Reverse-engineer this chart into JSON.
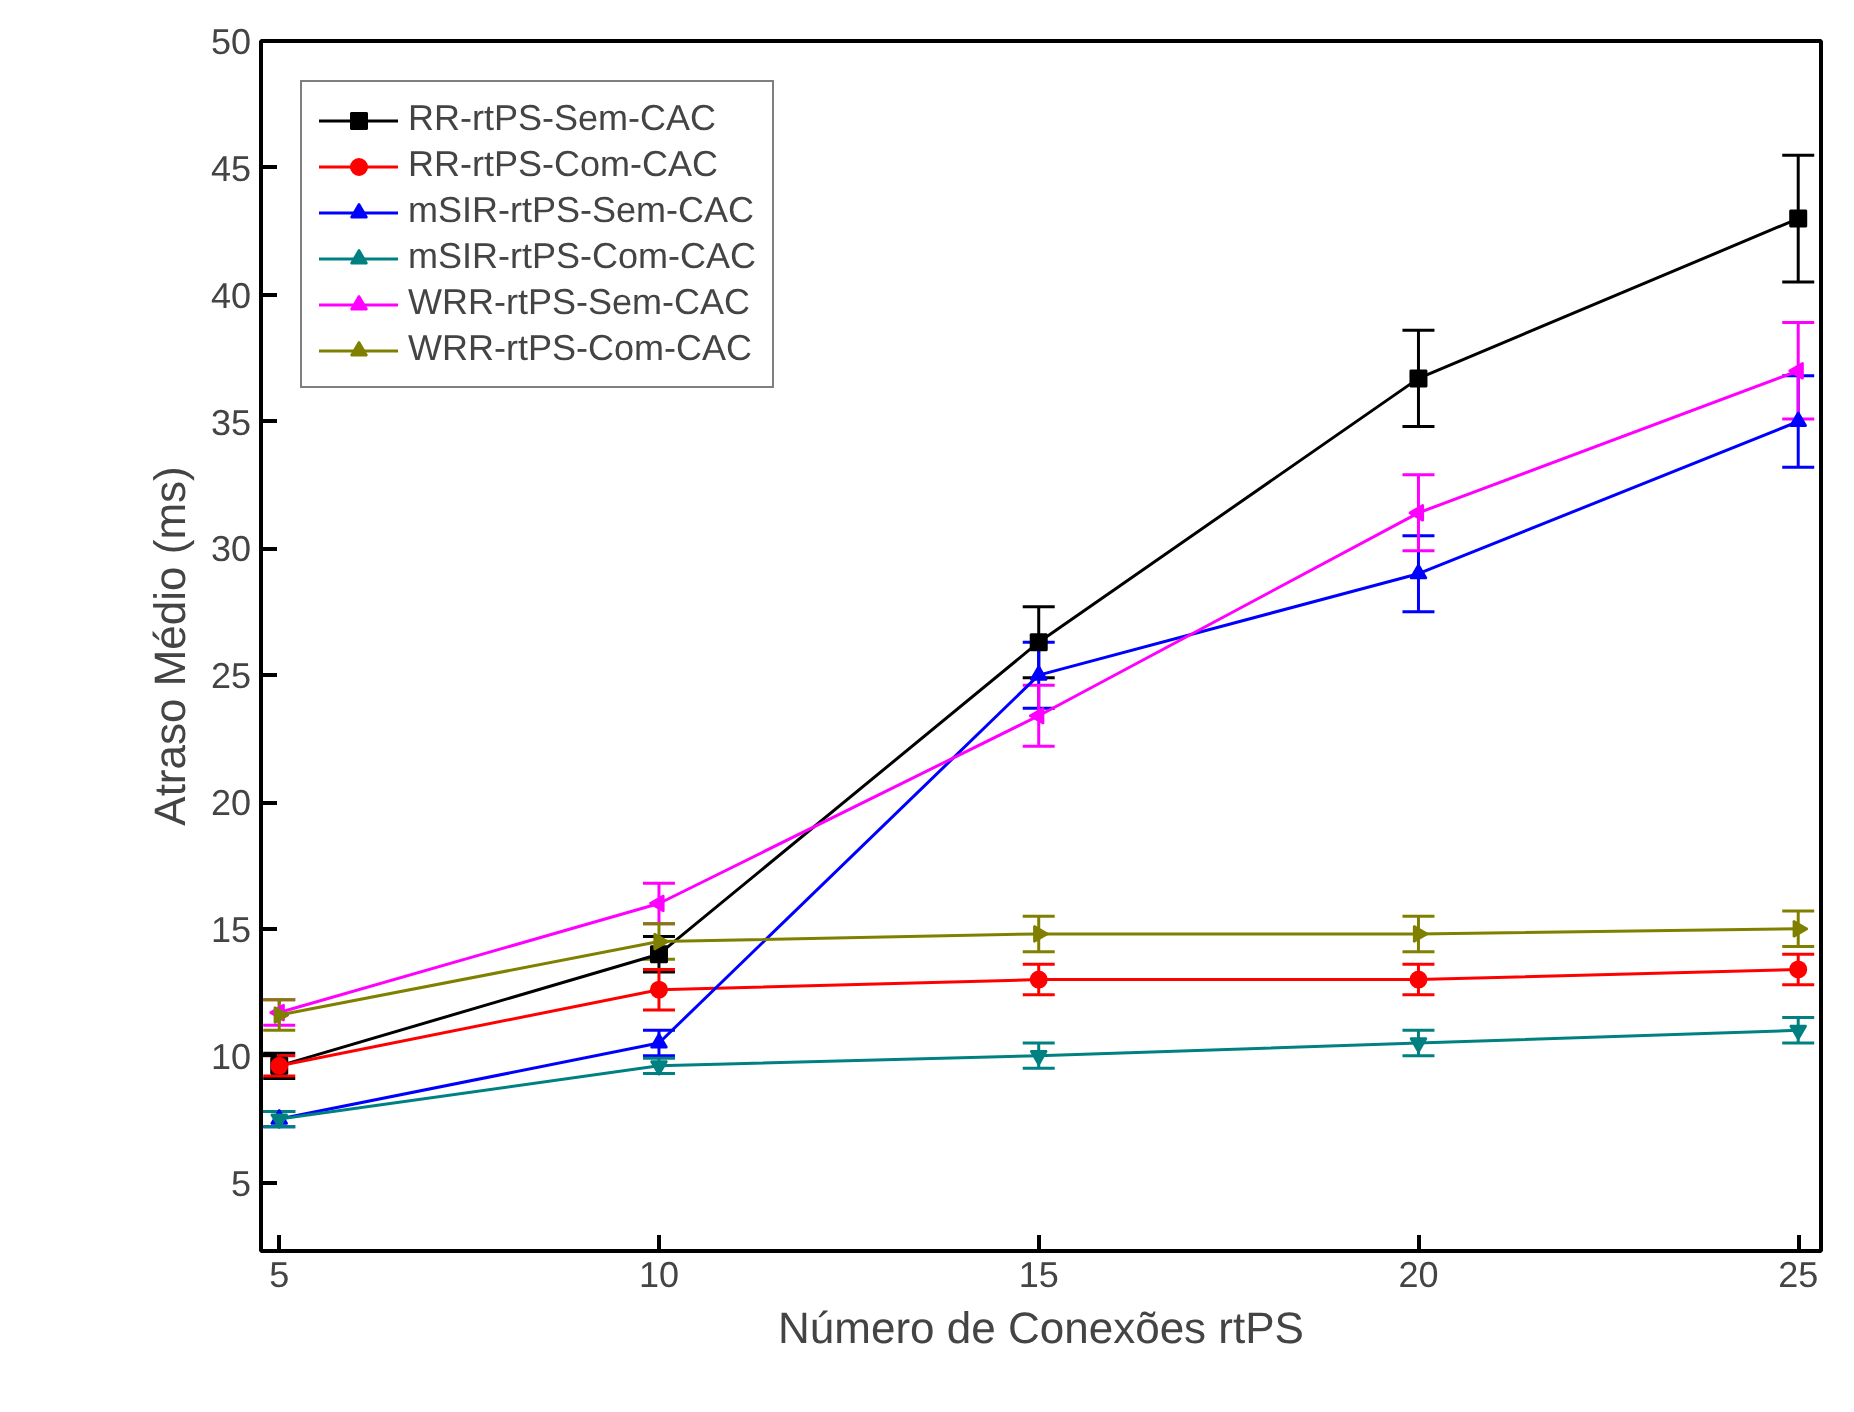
{
  "chart_data": {
    "type": "line",
    "xlabel": "Número de Conexões rtPS",
    "ylabel": "Atraso Médio (ms)",
    "x": [
      5,
      10,
      15,
      20,
      25
    ],
    "xlim": [
      4.76,
      25.3
    ],
    "xticks": [
      5,
      10,
      15,
      20,
      25
    ],
    "ylim": [
      2.3,
      50
    ],
    "yticks": [
      5,
      10,
      15,
      20,
      25,
      30,
      35,
      40,
      45,
      50
    ],
    "legend": "top left",
    "grid": false,
    "line_style": "solid",
    "series": [
      {
        "name": "RR-rtPS-Sem-CAC",
        "color": "#000000",
        "marker": "square",
        "values": [
          9.6,
          14.0,
          26.3,
          36.7,
          43.0
        ],
        "errors": [
          0.5,
          0.7,
          1.4,
          1.9,
          2.5
        ]
      },
      {
        "name": "RR-rtPS-Com-CAC",
        "color": "#ff0000",
        "marker": "circle",
        "values": [
          9.6,
          12.6,
          13.0,
          13.0,
          13.4
        ],
        "errors": [
          0.4,
          0.8,
          0.6,
          0.6,
          0.6
        ]
      },
      {
        "name": "mSIR-rtPS-Sem-CAC",
        "color": "#0000ff",
        "marker": "triangle",
        "values": [
          7.5,
          10.5,
          25.0,
          29.0,
          35.0
        ],
        "errors": [
          0.3,
          0.5,
          1.3,
          1.5,
          1.8
        ]
      },
      {
        "name": "mSIR-rtPS-Com-CAC",
        "color": "#008080",
        "marker": "triangle",
        "values": [
          7.5,
          9.6,
          10.0,
          10.5,
          11.0
        ],
        "errors": [
          0.3,
          0.3,
          0.5,
          0.5,
          0.5
        ]
      },
      {
        "name": "WRR-rtPS-Sem-CAC",
        "color": "#ff00ff",
        "marker": "triangle",
        "values": [
          11.7,
          16.0,
          23.4,
          31.4,
          37.0
        ],
        "errors": [
          0.5,
          0.8,
          1.2,
          1.5,
          1.9
        ]
      },
      {
        "name": "WRR-rtPS-Com-CAC",
        "color": "#808000",
        "marker": "triangle",
        "values": [
          11.6,
          14.5,
          14.8,
          14.8,
          15.0
        ],
        "errors": [
          0.6,
          0.7,
          0.7,
          0.7,
          0.7
        ]
      }
    ]
  }
}
